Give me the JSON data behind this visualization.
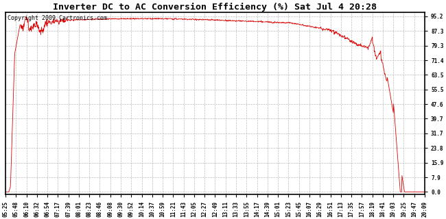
{
  "title": "Inverter DC to AC Conversion Efficiency (%) Sat Jul 4 20:28",
  "copyright": "Copyright 2009 Cartronics.com",
  "line_color": "#dd0000",
  "bg_color": "#ffffff",
  "plot_bg_color": "#ffffff",
  "grid_color": "#bbbbbb",
  "yticks": [
    0.0,
    7.9,
    15.9,
    23.8,
    31.7,
    39.7,
    47.6,
    55.5,
    63.5,
    71.4,
    79.3,
    87.3,
    95.2
  ],
  "ylim": [
    -1.5,
    97.5
  ],
  "xtick_labels": [
    "05:25",
    "05:48",
    "06:10",
    "06:32",
    "06:54",
    "07:17",
    "07:39",
    "08:01",
    "08:23",
    "08:46",
    "09:08",
    "09:30",
    "09:52",
    "10:14",
    "10:37",
    "10:59",
    "11:21",
    "11:43",
    "12:05",
    "12:27",
    "12:49",
    "13:11",
    "13:33",
    "13:55",
    "14:17",
    "14:39",
    "15:01",
    "15:23",
    "15:45",
    "16:07",
    "16:29",
    "16:51",
    "17:13",
    "17:35",
    "17:57",
    "18:19",
    "18:41",
    "19:03",
    "19:25",
    "19:47",
    "20:09"
  ],
  "title_fontsize": 9.5,
  "tick_fontsize": 5.5,
  "copyright_fontsize": 6.0
}
